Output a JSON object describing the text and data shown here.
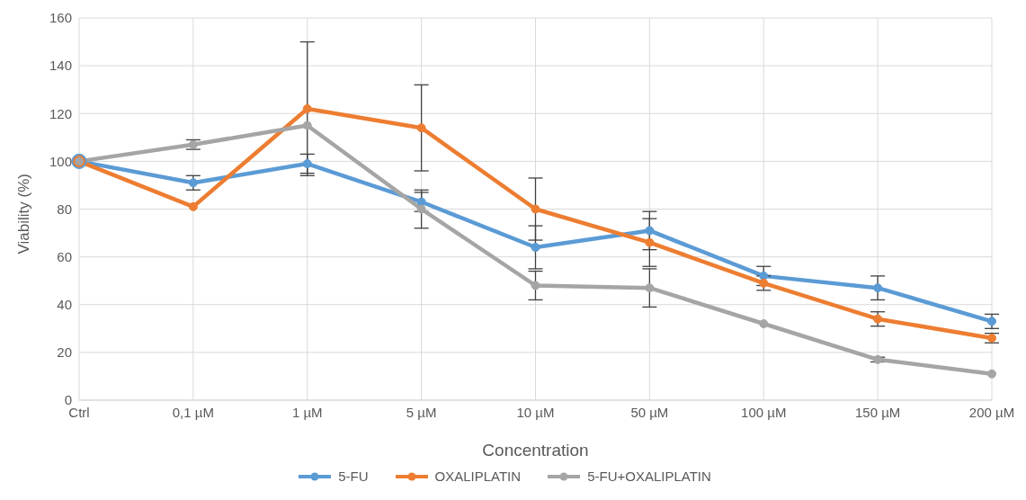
{
  "chart_data": {
    "type": "line",
    "xlabel": "Concentration",
    "ylabel": "Viability (%)",
    "categories": [
      "Ctrl",
      "0,1 µM",
      "1 µM",
      "5 µM",
      "10 µM",
      "50 µM",
      "100 µM",
      "150 µM",
      "200 µM"
    ],
    "series": [
      {
        "name": "5-FU",
        "color": "#5b9bd5",
        "values": [
          100,
          91,
          99,
          83,
          64,
          71,
          52,
          47,
          33
        ],
        "errors": [
          null,
          3,
          4,
          4,
          9,
          8,
          4,
          5,
          3
        ]
      },
      {
        "name": "OXALIPLATIN",
        "color": "#ed7d31",
        "values": [
          100,
          81,
          122,
          114,
          80,
          66,
          49,
          34,
          26
        ],
        "errors": [
          null,
          null,
          28,
          18,
          13,
          10,
          3,
          3,
          2
        ]
      },
      {
        "name": "5-FU+OXALIPLATIN",
        "color": "#a5a5a5",
        "values": [
          100,
          107,
          115,
          80,
          48,
          47,
          32,
          17,
          11
        ],
        "errors": [
          null,
          2,
          null,
          8,
          6,
          8,
          null,
          1,
          null
        ]
      }
    ],
    "ylim": [
      0,
      160
    ],
    "yticks": [
      0,
      20,
      40,
      60,
      80,
      100,
      120,
      140,
      160
    ],
    "grid": true,
    "legend": "bottom",
    "marker": "circle",
    "line_style": "solid"
  }
}
